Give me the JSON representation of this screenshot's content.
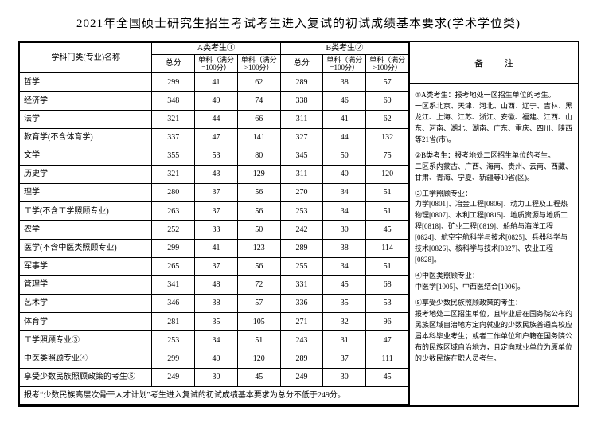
{
  "title": "2021年全国硕士研究生招生考试考生进入复试的初试成绩基本要求(学术学位类)",
  "headers": {
    "subject": "学科门类(专业)名称",
    "groupA": "A类考生①",
    "groupB": "B类考生②",
    "total": "总分",
    "sub1": "单科（满分=100分）",
    "sub2": "单科（满分>100分）",
    "remark": "备　注"
  },
  "rows": [
    {
      "name": "哲学",
      "a_total": "299",
      "a_s1": "41",
      "a_s2": "62",
      "b_total": "289",
      "b_s1": "38",
      "b_s2": "57"
    },
    {
      "name": "经济学",
      "a_total": "348",
      "a_s1": "49",
      "a_s2": "74",
      "b_total": "338",
      "b_s1": "46",
      "b_s2": "69"
    },
    {
      "name": "法学",
      "a_total": "321",
      "a_s1": "44",
      "a_s2": "66",
      "b_total": "311",
      "b_s1": "41",
      "b_s2": "62"
    },
    {
      "name": "教育学(不含体育学)",
      "a_total": "337",
      "a_s1": "47",
      "a_s2": "141",
      "b_total": "327",
      "b_s1": "44",
      "b_s2": "132"
    },
    {
      "name": "文学",
      "a_total": "355",
      "a_s1": "53",
      "a_s2": "80",
      "b_total": "345",
      "b_s1": "50",
      "b_s2": "75"
    },
    {
      "name": "历史学",
      "a_total": "321",
      "a_s1": "43",
      "a_s2": "129",
      "b_total": "311",
      "b_s1": "40",
      "b_s2": "120"
    },
    {
      "name": "理学",
      "a_total": "280",
      "a_s1": "37",
      "a_s2": "56",
      "b_total": "270",
      "b_s1": "34",
      "b_s2": "51"
    },
    {
      "name": "工学(不含工学照顾专业)",
      "a_total": "263",
      "a_s1": "37",
      "a_s2": "56",
      "b_total": "253",
      "b_s1": "34",
      "b_s2": "51"
    },
    {
      "name": "农学",
      "a_total": "252",
      "a_s1": "33",
      "a_s2": "50",
      "b_total": "242",
      "b_s1": "30",
      "b_s2": "45"
    },
    {
      "name": "医学(不含中医类照顾专业)",
      "a_total": "299",
      "a_s1": "41",
      "a_s2": "123",
      "b_total": "289",
      "b_s1": "38",
      "b_s2": "114"
    },
    {
      "name": "军事学",
      "a_total": "265",
      "a_s1": "37",
      "a_s2": "56",
      "b_total": "255",
      "b_s1": "34",
      "b_s2": "51"
    },
    {
      "name": "管理学",
      "a_total": "341",
      "a_s1": "48",
      "a_s2": "72",
      "b_total": "331",
      "b_s1": "45",
      "b_s2": "68"
    },
    {
      "name": "艺术学",
      "a_total": "346",
      "a_s1": "38",
      "a_s2": "57",
      "b_total": "336",
      "b_s1": "35",
      "b_s2": "53"
    },
    {
      "name": "体育学",
      "a_total": "281",
      "a_s1": "35",
      "a_s2": "105",
      "b_total": "271",
      "b_s1": "32",
      "b_s2": "96"
    },
    {
      "name": "工学照顾专业③",
      "a_total": "253",
      "a_s1": "34",
      "a_s2": "51",
      "b_total": "243",
      "b_s1": "31",
      "b_s2": "47"
    },
    {
      "name": "中医类照顾专业④",
      "a_total": "299",
      "a_s1": "40",
      "a_s2": "120",
      "b_total": "289",
      "b_s1": "37",
      "b_s2": "111"
    },
    {
      "name": "享受少数民族照顾政策的考生⑤",
      "a_total": "249",
      "a_s1": "30",
      "a_s2": "45",
      "b_total": "249",
      "b_s1": "30",
      "b_s2": "45"
    }
  ],
  "footnote": "报考“少数民族高层次骨干人才计划”考生进入复试的初试成绩基本要求为总分不低于249分。",
  "remarks": {
    "r1": "①A类考生：报考地处一区招生单位的考生。",
    "r1b": "一区系北京、天津、河北、山西、辽宁、吉林、黑龙江、上海、江苏、浙江、安徽、福建、江西、山东、河南、湖北、湖南、广东、重庆、四川、陕西等21省(市)。",
    "r2": "②B类考生：报考地处二区招生单位的考生。",
    "r2b": "二区系内蒙古、广西、海南、贵州、云南、西藏、甘肃、青海、宁夏、新疆等10省(区)。",
    "r3": "③工学照顾专业：",
    "r3b": "力学[0801]、冶金工程[0806]、动力工程及工程热物理[0807]、水利工程[0815]、地质资源与地质工程[0818]、矿业工程[0819]、船舶与海洋工程[0824]、航空宇航科学与技术[0825]、兵器科学与技术[0826]、核科学与技术[0827]、农业工程[0828]。",
    "r4": "④中医类照顾专业：",
    "r4b": "中医学[1005]、中西医结合[1006]。",
    "r5": "⑤享受少数民族照顾政策的考生：",
    "r5b": "报考地处二区招生单位，且毕业后在国务院公布的民族区域自治地方定向就业的少数民族普通高校应届本科毕业考生；或者工作单位和户籍在国务院公布的民族区域自治地方，且定向就业单位为原单位的少数民族在职人员考生。"
  }
}
